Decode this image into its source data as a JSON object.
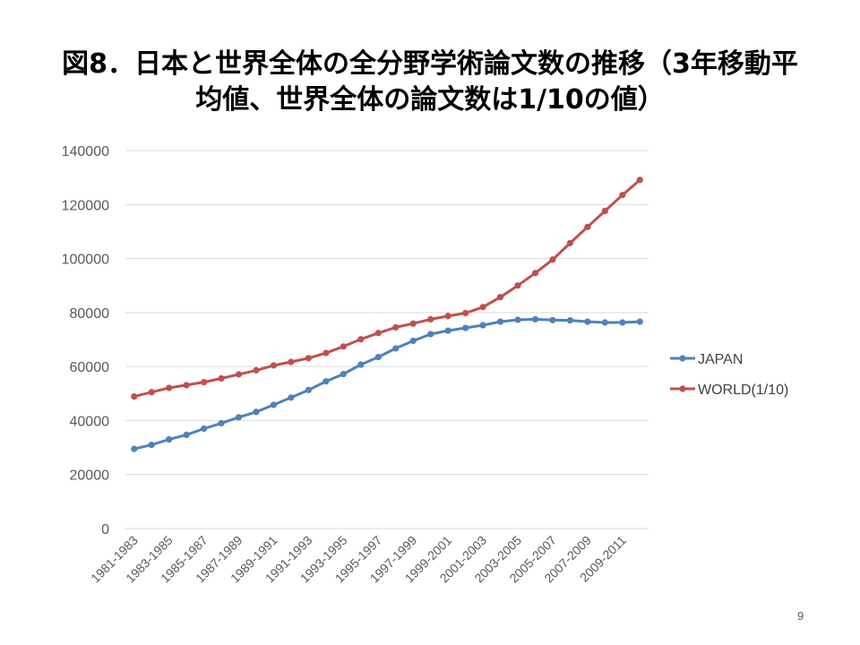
{
  "page": {
    "number": "9"
  },
  "title_lines": [
    "図8．日本と世界全体の全分野学術論文数の推移（3年移動平",
    "均値、世界全体の論文数は1/10の値）"
  ],
  "chart_data": {
    "type": "line",
    "title": "図8．日本と世界全体の全分野学術論文数の推移（3年移動平均値、世界全体の論文数は1/10の値）",
    "xlabel": "",
    "ylabel": "",
    "ylim": [
      0,
      140000
    ],
    "yticks": [
      0,
      20000,
      40000,
      60000,
      80000,
      100000,
      120000,
      140000
    ],
    "grid": true,
    "legend_position": "right",
    "x": [
      "1981-1983",
      "1982-1984",
      "1983-1985",
      "1984-1986",
      "1985-1987",
      "1986-1988",
      "1987-1989",
      "1988-1990",
      "1989-1991",
      "1990-1992",
      "1991-1993",
      "1992-1994",
      "1993-1995",
      "1994-1996",
      "1995-1997",
      "1996-1998",
      "1997-1999",
      "1998-2000",
      "1999-2001",
      "2000-2002",
      "2001-2003",
      "2002-2004",
      "2003-2005",
      "2004-2006",
      "2005-2007",
      "2006-2008",
      "2007-2009",
      "2008-2010",
      "2009-2011",
      "2010-2012"
    ],
    "x_tick_labels": [
      "1981-1983",
      "1983-1985",
      "1985-1987",
      "1987-1989",
      "1989-1991",
      "1991-1993",
      "1993-1995",
      "1995-1997",
      "1997-1999",
      "1999-2001",
      "2001-2003",
      "2003-2005",
      "2005-2007",
      "2007-2009",
      "2009-2011"
    ],
    "series": [
      {
        "name": "JAPAN",
        "color": "#4f81bd",
        "values": [
          29500,
          31000,
          33000,
          34700,
          37000,
          39000,
          41200,
          43200,
          45800,
          48500,
          51300,
          54500,
          57200,
          60700,
          63500,
          66700,
          69500,
          72000,
          73300,
          74300,
          75300,
          76600,
          77300,
          77500,
          77200,
          77100,
          76600,
          76300,
          76300,
          76600
        ]
      },
      {
        "name": "WORLD(1/10)",
        "color": "#c0504d",
        "values": [
          48900,
          50500,
          52100,
          53100,
          54200,
          55600,
          57100,
          58600,
          60400,
          61700,
          63100,
          65000,
          67400,
          70100,
          72400,
          74500,
          75900,
          77500,
          78700,
          79800,
          82000,
          85700,
          90000,
          94600,
          99600,
          105700,
          111700,
          117600,
          123500,
          129100
        ]
      }
    ]
  }
}
